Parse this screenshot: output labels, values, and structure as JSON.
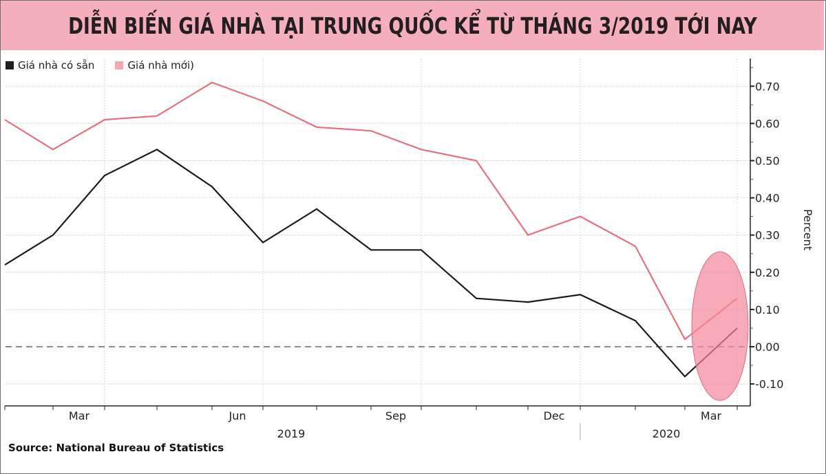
{
  "header": {
    "title": "DIỄN BIẾN GIÁ NHÀ TẠI TRUNG QUỐC KỂ TỪ THÁNG 3/2019 TỚI NAY",
    "background_color": "#f4aebc"
  },
  "legend": {
    "items": [
      {
        "label": "Giá nhà có sẵn",
        "color": "#231f20"
      },
      {
        "label": "Giá nhà mới)",
        "color": "#f4a7b5"
      }
    ]
  },
  "axis": {
    "y_label": "Percent",
    "y_ticks": [
      "0.70",
      "0.60",
      "0.50",
      "0.40",
      "0.30",
      "0.20",
      "0.10",
      "0.00",
      "-0.10"
    ],
    "x_month_labels": [
      "Mar",
      "Jun",
      "Sep",
      "Dec",
      "Mar"
    ],
    "x_year_labels": [
      "2019",
      "2020"
    ]
  },
  "footer": {
    "source": "Source: National Bureau of Statistics"
  },
  "chart_data": {
    "type": "line",
    "title": "DIỄN BIẾN GIÁ NHÀ TẠI TRUNG QUỐC KỂ TỪ THÁNG 3/2019 TỚI NAY",
    "xlabel": "",
    "ylabel": "Percent",
    "ylim": [
      -0.15,
      0.78
    ],
    "grid": true,
    "legend_position": "top-left",
    "x": [
      "2019-02",
      "2019-03",
      "2019-04",
      "2019-05",
      "2019-06",
      "2019-07",
      "2019-08",
      "2019-09",
      "2019-10",
      "2019-11",
      "2019-12",
      "2020-01",
      "2020-02",
      "2020-03",
      "2020-04"
    ],
    "series": [
      {
        "name": "Giá nhà có sẵn",
        "color": "#231f20",
        "values": [
          0.22,
          0.3,
          0.46,
          0.53,
          0.43,
          0.28,
          0.37,
          0.26,
          0.26,
          0.13,
          0.12,
          0.14,
          0.07,
          -0.08,
          0.05
        ]
      },
      {
        "name": "Giá nhà mới)",
        "color": "#e8707c",
        "values": [
          0.61,
          0.53,
          0.61,
          0.62,
          0.71,
          0.66,
          0.59,
          0.58,
          0.53,
          0.5,
          0.3,
          0.35,
          0.27,
          0.02,
          0.13
        ]
      }
    ],
    "reference_line": {
      "y": 0.0,
      "style": "dashed"
    },
    "annotations": [
      {
        "type": "ellipse-highlight",
        "color": "#f4899c",
        "around": [
          "2020-03",
          "2020-04"
        ]
      }
    ],
    "x_tick_labels": [
      "Mar",
      "Jun",
      "Sep",
      "Dec",
      "Mar"
    ],
    "x_year_labels": [
      "2019",
      "2020"
    ],
    "y_tick_labels": [
      "0.70",
      "0.60",
      "0.50",
      "0.40",
      "0.30",
      "0.20",
      "0.10",
      "0.00",
      "-0.10"
    ]
  }
}
